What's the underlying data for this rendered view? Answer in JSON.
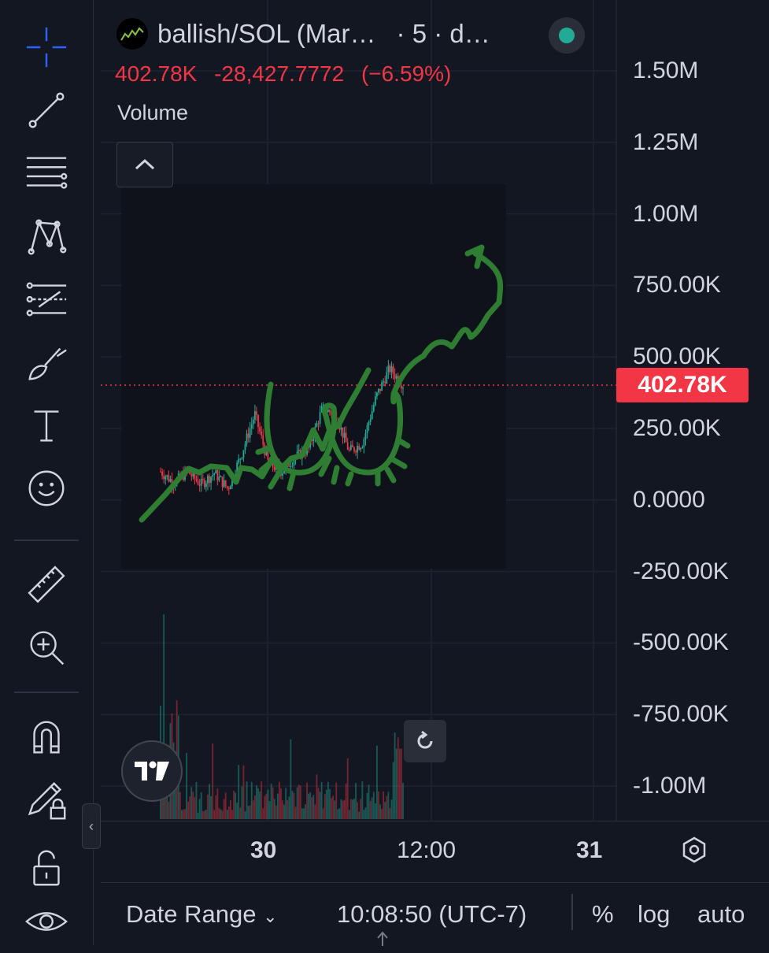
{
  "symbol": {
    "title": "ballish/SOL (Mar…",
    "interval": "· 5 · d…"
  },
  "quote": {
    "last": "402.78K",
    "change": "-28,427.7772",
    "change_pct": "(−6.59%)"
  },
  "legend": {
    "volume_label": "Volume"
  },
  "price_axis": {
    "labels": [
      "1.50M",
      "1.25M",
      "1.00M",
      "750.00K",
      "500.00K",
      "250.00K",
      "0.0000",
      "-250.00K",
      "-500.00K",
      "-750.00K",
      "-1.00M"
    ],
    "current_price_tag": "402.78K"
  },
  "time_axis": {
    "labels": [
      "30",
      "12:00",
      "31"
    ]
  },
  "bottom_bar": {
    "date_range": "Date Range",
    "clock": "10:08:50 (UTC-7)",
    "percent": "%",
    "log": "log",
    "auto": "auto"
  },
  "colors": {
    "background": "#131722",
    "down": "#f23645",
    "up": "#22ab94",
    "drawing": "#2e7d32",
    "status": "#22ab94"
  },
  "toolbar": {
    "tools": [
      "crosshair-icon",
      "trend-line-icon",
      "fib-retracement-icon",
      "pattern-icon",
      "prediction-icon",
      "brush-icon",
      "text-icon",
      "emoji-icon",
      "ruler-icon",
      "zoom-in-icon",
      "magnet-icon",
      "lock-drawings-icon",
      "unlock-icon",
      "eye-icon"
    ]
  },
  "chart_data": {
    "type": "candlestick",
    "y_unit": "price",
    "last_price": 402780,
    "price_path": [
      100000,
      60000,
      100000,
      55000,
      95000,
      40000,
      160000,
      300000,
      130000,
      100000,
      150000,
      180000,
      320000,
      300000,
      170000,
      200000,
      360000,
      460000,
      402780
    ],
    "x_ticks": [
      "30",
      "12:00",
      "31"
    ]
  }
}
